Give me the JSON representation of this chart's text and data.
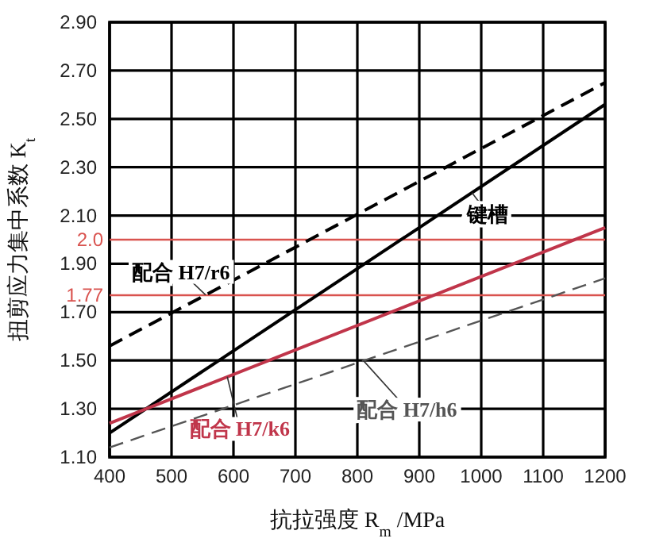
{
  "chart_data": {
    "type": "line",
    "xlabel": "抗拉强度 R$_{m}$ /MPa",
    "ylabel": "扭剪应力集中系数 K$_{t}$",
    "x": [
      400,
      1200
    ],
    "series": [
      {
        "name": "键槽",
        "color": "#000000",
        "values": [
          1.2,
          2.56
        ],
        "line_style": "solid"
      },
      {
        "name": "配合 H7/r6",
        "color": "#000000",
        "values": [
          1.56,
          2.65
        ],
        "line_style": "dashed"
      },
      {
        "name": "配合 H7/k6",
        "color": "#c0354a",
        "values": [
          1.24,
          2.05
        ],
        "line_style": "solid"
      },
      {
        "name": "配合 H7/h6",
        "color": "#555555",
        "values": [
          1.14,
          1.84
        ],
        "line_style": "dashed"
      }
    ],
    "xlim": [
      400,
      1200
    ],
    "xticks": [
      400,
      500,
      600,
      700,
      800,
      900,
      1000,
      1100,
      1200
    ],
    "ylim": [
      1.1,
      2.9
    ],
    "yticks": [
      {
        "value": 1.1,
        "label": "1.10"
      },
      {
        "value": 1.3,
        "label": "1.30"
      },
      {
        "value": 1.5,
        "label": "1.50"
      },
      {
        "value": 1.7,
        "label": "1.70"
      },
      {
        "value": 1.9,
        "label": "1.90"
      },
      {
        "value": 2.1,
        "label": "2.10"
      },
      {
        "value": 2.3,
        "label": "2.30"
      },
      {
        "value": 2.5,
        "label": "2.50"
      },
      {
        "value": 2.7,
        "label": "2.70"
      },
      {
        "value": 2.9,
        "label": "2.90"
      }
    ],
    "ref_lines": [
      {
        "axis": "y",
        "value": 2.0,
        "label": "2.0",
        "color": "#d9534f"
      },
      {
        "axis": "y",
        "value": 1.77,
        "label": "1.77",
        "color": "#d9534f"
      }
    ],
    "grid": true,
    "marker": "none"
  }
}
